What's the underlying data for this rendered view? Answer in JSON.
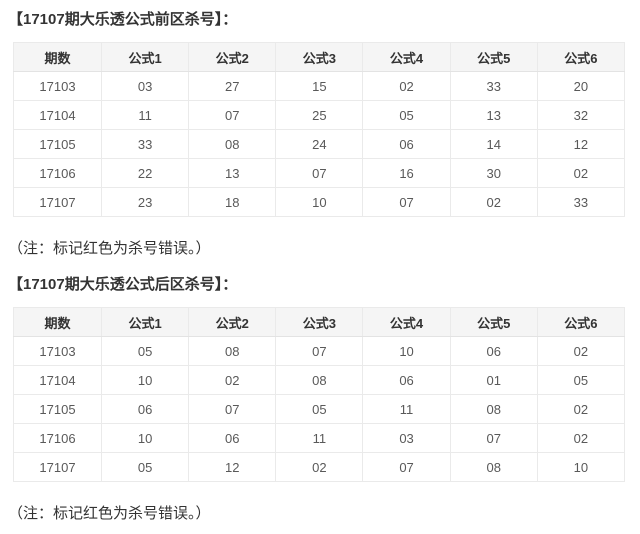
{
  "colors": {
    "accent_red": "#e6363c",
    "text_dark": "#333333",
    "text_gray": "#595959",
    "header_bg": "#f5f5f5",
    "border": "#eaeaea"
  },
  "front": {
    "title": "【17107期大乐透公式前区杀号】：",
    "note": "（注：标记红色为杀号错误。）",
    "table": {
      "headers": [
        "期数",
        "公式1",
        "公式2",
        "公式3",
        "公式4",
        "公式5",
        "公式6"
      ],
      "rows": [
        {
          "period": "17103",
          "cells": [
            {
              "v": "03"
            },
            {
              "v": "27"
            },
            {
              "v": "15"
            },
            {
              "v": "02"
            },
            {
              "v": "33"
            },
            {
              "v": "20",
              "red": true
            }
          ]
        },
        {
          "period": "17104",
          "cells": [
            {
              "v": "11",
              "red": true
            },
            {
              "v": "07"
            },
            {
              "v": "25"
            },
            {
              "v": "05"
            },
            {
              "v": "13"
            },
            {
              "v": "32"
            }
          ]
        },
        {
          "period": "17105",
          "cells": [
            {
              "v": "33"
            },
            {
              "v": "08"
            },
            {
              "v": "24",
              "red": true
            },
            {
              "v": "06"
            },
            {
              "v": "14"
            },
            {
              "v": "12"
            }
          ]
        },
        {
          "period": "17106",
          "cells": [
            {
              "v": "22"
            },
            {
              "v": "13"
            },
            {
              "v": "07"
            },
            {
              "v": "16"
            },
            {
              "v": "30"
            },
            {
              "v": "02"
            }
          ]
        },
        {
          "period": "17107",
          "cells": [
            {
              "v": "23"
            },
            {
              "v": "18"
            },
            {
              "v": "10"
            },
            {
              "v": "07"
            },
            {
              "v": "02"
            },
            {
              "v": "33"
            }
          ]
        }
      ]
    }
  },
  "back": {
    "title": "【17107期大乐透公式后区杀号】：",
    "note": "（注：标记红色为杀号错误。）",
    "table": {
      "headers": [
        "期数",
        "公式1",
        "公式2",
        "公式3",
        "公式4",
        "公式5",
        "公式6"
      ],
      "rows": [
        {
          "period": "17103",
          "cells": [
            {
              "v": "05"
            },
            {
              "v": "08"
            },
            {
              "v": "07"
            },
            {
              "v": "10"
            },
            {
              "v": "06"
            },
            {
              "v": "02"
            }
          ]
        },
        {
          "period": "17104",
          "cells": [
            {
              "v": "10"
            },
            {
              "v": "02"
            },
            {
              "v": "08"
            },
            {
              "v": "06"
            },
            {
              "v": "01"
            },
            {
              "v": "05"
            }
          ]
        },
        {
          "period": "17105",
          "cells": [
            {
              "v": "06"
            },
            {
              "v": "07"
            },
            {
              "v": "05"
            },
            {
              "v": "11"
            },
            {
              "v": "08"
            },
            {
              "v": "02",
              "red": true
            }
          ]
        },
        {
          "period": "17106",
          "cells": [
            {
              "v": "10"
            },
            {
              "v": "06"
            },
            {
              "v": "11"
            },
            {
              "v": "03"
            },
            {
              "v": "07"
            },
            {
              "v": "02",
              "red": true
            }
          ]
        },
        {
          "period": "17107",
          "cells": [
            {
              "v": "05"
            },
            {
              "v": "12"
            },
            {
              "v": "02"
            },
            {
              "v": "07"
            },
            {
              "v": "08"
            },
            {
              "v": "10"
            }
          ]
        }
      ]
    }
  }
}
